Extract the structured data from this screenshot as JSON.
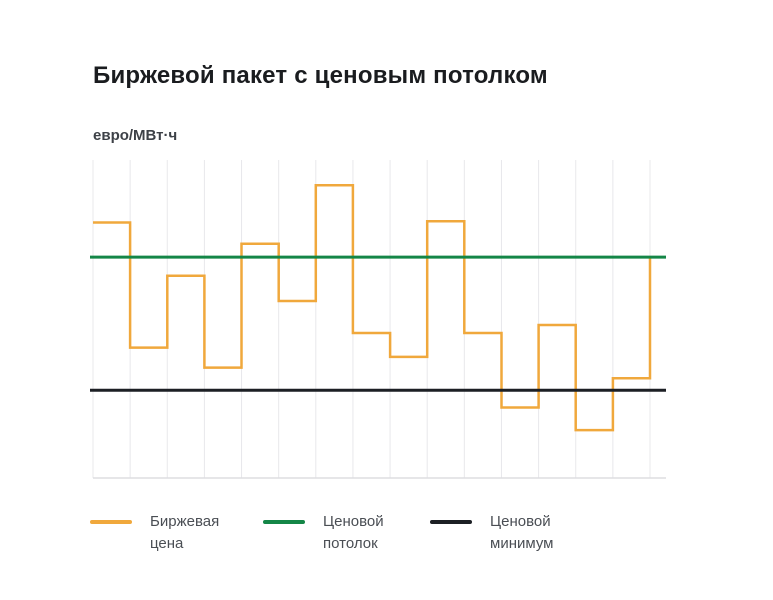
{
  "header": {
    "title": "Биржевой пакет с ценовым потолком",
    "y_axis_label": "евро/МВт·ч"
  },
  "legend": {
    "items": [
      {
        "name": "exchange-price",
        "label": "Биржевая\nцена",
        "color": "#F0A83C"
      },
      {
        "name": "price-ceiling",
        "label": "Ценовой\nпотолок",
        "color": "#148647"
      },
      {
        "name": "price-minimum",
        "label": "Ценовой\nминимум",
        "color": "#1C1F24"
      }
    ]
  },
  "chart_data": {
    "type": "line",
    "subtype": "step",
    "title": "Биржевой пакет с ценовым потолком",
    "ylabel": "евро/МВт·ч",
    "xlabel": "",
    "x_tick_labels": [],
    "y_tick_labels": [],
    "n_intervals": 15,
    "value_scale": "relative units: price ceiling = 100, price minimum = 0 (axes are unlabeled in the image)",
    "ylim": [
      -66,
      173
    ],
    "series": [
      {
        "name": "Биржевая цена",
        "type": "step",
        "color": "#F0A83C",
        "values": [
          126,
          32,
          86,
          17,
          110,
          67,
          154,
          43,
          25,
          127,
          43,
          -13,
          49,
          -30,
          9
        ],
        "end_value": 100
      },
      {
        "name": "Ценовой потолок",
        "type": "constant",
        "color": "#148647",
        "value": 100
      },
      {
        "name": "Ценовой минимум",
        "type": "constant",
        "color": "#1C1F24",
        "value": 0
      }
    ],
    "grid": {
      "vertical": true,
      "horizontal": false,
      "color": "#E8E8EB"
    },
    "axis_line_color": "#DDDDE1",
    "background": "#FFFFFF",
    "legend_position": "bottom"
  }
}
